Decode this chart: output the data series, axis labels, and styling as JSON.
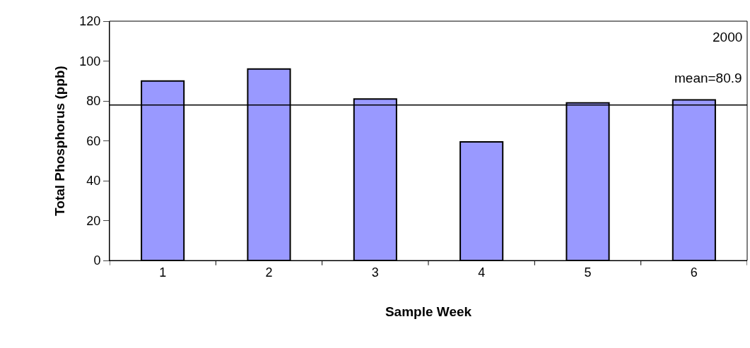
{
  "chart_data": {
    "type": "bar",
    "xlabel": "Sample Week",
    "ylabel": "Total Phosphorus (ppb)",
    "categories": [
      "1",
      "2",
      "3",
      "4",
      "5",
      "6"
    ],
    "values": [
      90,
      96,
      81,
      59.5,
      79,
      80.5
    ],
    "color": "#9999ff",
    "ylim": [
      0,
      120
    ],
    "yticks": [
      0,
      20,
      40,
      60,
      80,
      100,
      120
    ],
    "ref_lines": [
      {
        "axis": "y",
        "value": 78,
        "color": "#000000"
      }
    ],
    "annotations": [
      "2000",
      "mean=80.9"
    ]
  }
}
